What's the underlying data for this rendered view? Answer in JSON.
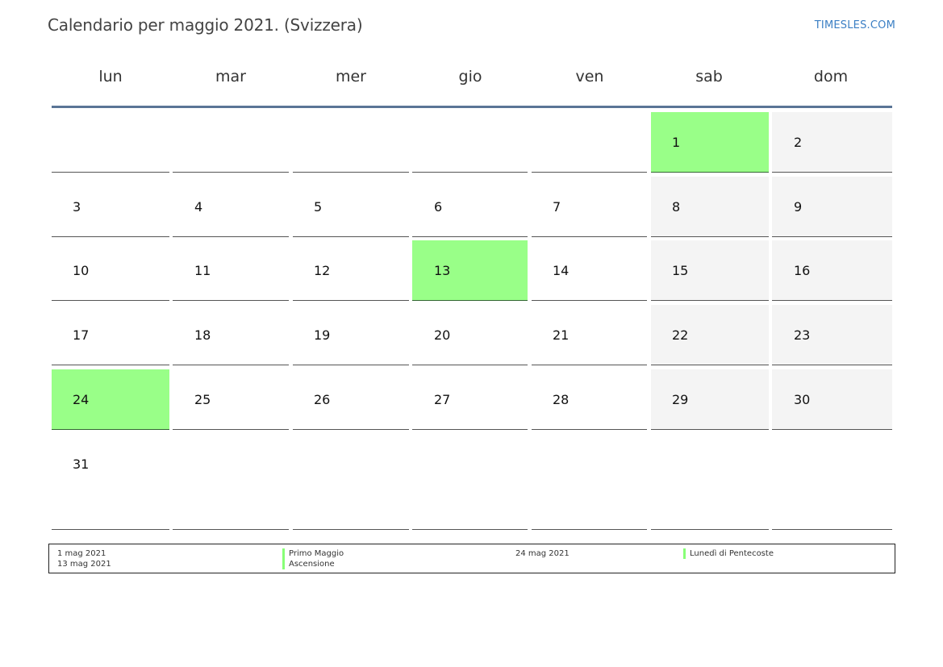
{
  "title": "Calendario per maggio 2021. (Svizzera)",
  "brand": "TIMESLES.COM",
  "weekdays": [
    "lun",
    "mar",
    "mer",
    "gio",
    "ven",
    "sab",
    "dom"
  ],
  "weeks": [
    [
      "",
      "",
      "",
      "",
      "",
      "1",
      "2"
    ],
    [
      "3",
      "4",
      "5",
      "6",
      "7",
      "8",
      "9"
    ],
    [
      "10",
      "11",
      "12",
      "13",
      "14",
      "15",
      "16"
    ],
    [
      "17",
      "18",
      "19",
      "20",
      "21",
      "22",
      "23"
    ],
    [
      "24",
      "25",
      "26",
      "27",
      "28",
      "29",
      "30"
    ],
    [
      "31",
      "",
      "",
      "",
      "",
      "",
      ""
    ]
  ],
  "holidays": [
    "1",
    "13",
    "24"
  ],
  "colors": {
    "holiday": "#99ff88",
    "weekend": "#f4f4f4",
    "header_rule": "#5a7596",
    "brand": "#3b7fc4"
  },
  "legend": {
    "left_dates": [
      "1 mag 2021",
      "13 mag 2021"
    ],
    "left_names": [
      "Primo Maggio",
      "Ascensione"
    ],
    "right_dates": [
      "24 mag 2021"
    ],
    "right_names": [
      "Lunedì di Pentecoste"
    ]
  }
}
